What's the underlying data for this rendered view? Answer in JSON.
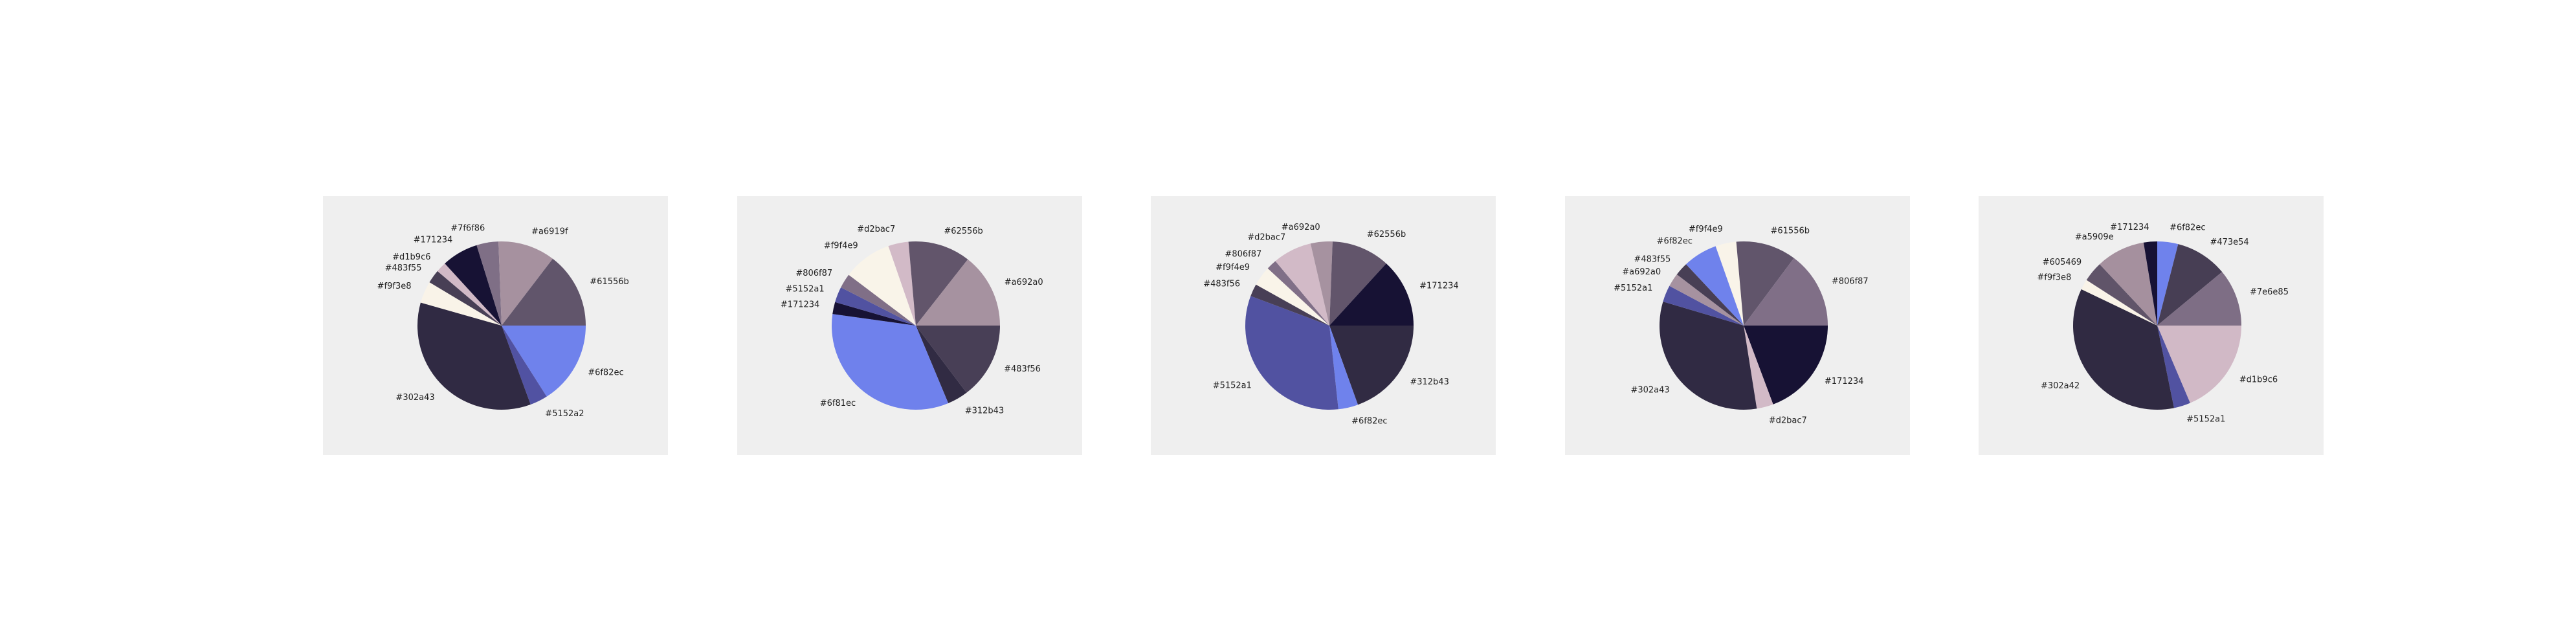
{
  "chart_data": [
    {
      "type": "pie",
      "slices": [
        {
          "label": "#6f82ec",
          "color": "#6f82ec",
          "value": 16.0
        },
        {
          "label": "#5152a2",
          "color": "#5152a2",
          "value": 3.4
        },
        {
          "label": "#302a43",
          "color": "#302a43",
          "value": 35.0
        },
        {
          "label": "#f9f3e8",
          "color": "#f9f3e8",
          "value": 4.2
        },
        {
          "label": "#483f55",
          "color": "#483f55",
          "value": 2.6
        },
        {
          "label": "#d1b9c6",
          "color": "#d1b9c6",
          "value": 2.0
        },
        {
          "label": "#171234",
          "color": "#171234",
          "value": 7.0
        },
        {
          "label": "#7f6f86",
          "color": "#7f6f86",
          "value": 4.2
        },
        {
          "label": "#a6919f",
          "color": "#a6919f",
          "value": 11.0
        },
        {
          "label": "#61556b",
          "color": "#61556b",
          "value": 14.6
        }
      ]
    },
    {
      "type": "pie",
      "slices": [
        {
          "label": "#483f56",
          "color": "#483f56",
          "value": 14.7
        },
        {
          "label": "#312b43",
          "color": "#312b43",
          "value": 4.0
        },
        {
          "label": "#6f81ec",
          "color": "#6f81ec",
          "value": 33.5
        },
        {
          "label": "#171234",
          "color": "#171234",
          "value": 2.3
        },
        {
          "label": "#5152a1",
          "color": "#5152a1",
          "value": 3.0
        },
        {
          "label": "#806f87",
          "color": "#806f87",
          "value": 2.8
        },
        {
          "label": "#f9f4e9",
          "color": "#f9f4e9",
          "value": 9.4
        },
        {
          "label": "#d2bac7",
          "color": "#d2bac7",
          "value": 3.9
        },
        {
          "label": "#62556b",
          "color": "#62556b",
          "value": 12.0
        },
        {
          "label": "#a692a0",
          "color": "#a692a0",
          "value": 14.4
        }
      ]
    },
    {
      "type": "pie",
      "slices": [
        {
          "label": "#312b43",
          "color": "#312b43",
          "value": 19.5
        },
        {
          "label": "#6f82ec",
          "color": "#6f82ec",
          "value": 3.8
        },
        {
          "label": "#5152a1",
          "color": "#5152a1",
          "value": 32.4
        },
        {
          "label": "#483f56",
          "color": "#483f56",
          "value": 2.4
        },
        {
          "label": "#f9f4e9",
          "color": "#f9f4e9",
          "value": 3.8
        },
        {
          "label": "#806f87",
          "color": "#806f87",
          "value": 2.0
        },
        {
          "label": "#d2bac7",
          "color": "#d2bac7",
          "value": 7.5
        },
        {
          "label": "#a692a0",
          "color": "#a692a0",
          "value": 4.2
        },
        {
          "label": "#62556b",
          "color": "#62556b",
          "value": 11.2
        },
        {
          "label": "#171234",
          "color": "#171234",
          "value": 13.2
        }
      ]
    },
    {
      "type": "pie",
      "slices": [
        {
          "label": "#171234",
          "color": "#171234",
          "value": 19.3
        },
        {
          "label": "#d2bac7",
          "color": "#d2bac7",
          "value": 3.2
        },
        {
          "label": "#302a43",
          "color": "#302a43",
          "value": 32.1
        },
        {
          "label": "#5152a1",
          "color": "#5152a1",
          "value": 3.2
        },
        {
          "label": "#a692a0",
          "color": "#a692a0",
          "value": 2.6
        },
        {
          "label": "#483f55",
          "color": "#483f55",
          "value": 2.6
        },
        {
          "label": "#6f82ec",
          "color": "#6f82ec",
          "value": 6.6
        },
        {
          "label": "#f9f4e9",
          "color": "#f9f4e9",
          "value": 4.0
        },
        {
          "label": "#61556b",
          "color": "#61556b",
          "value": 11.6
        },
        {
          "label": "#806f87",
          "color": "#806f87",
          "value": 14.8
        }
      ]
    },
    {
      "type": "pie",
      "slices": [
        {
          "label": "#d1b9c6",
          "color": "#d1b9c6",
          "value": 18.6
        },
        {
          "label": "#5152a1",
          "color": "#5152a1",
          "value": 3.2
        },
        {
          "label": "#302a42",
          "color": "#302a42",
          "value": 35.3
        },
        {
          "label": "#f9f3e8",
          "color": "#f9f3e8",
          "value": 2.0
        },
        {
          "label": "#605469",
          "color": "#605469",
          "value": 3.9
        },
        {
          "label": "#a5909e",
          "color": "#a5909e",
          "value": 9.4
        },
        {
          "label": "#171234",
          "color": "#171234",
          "value": 2.6
        },
        {
          "label": "#6f82ec",
          "color": "#6f82ec",
          "value": 4.0
        },
        {
          "label": "#473e54",
          "color": "#473e54",
          "value": 10.0
        },
        {
          "label": "#7e6e85",
          "color": "#7e6e85",
          "value": 11.0
        }
      ]
    }
  ]
}
